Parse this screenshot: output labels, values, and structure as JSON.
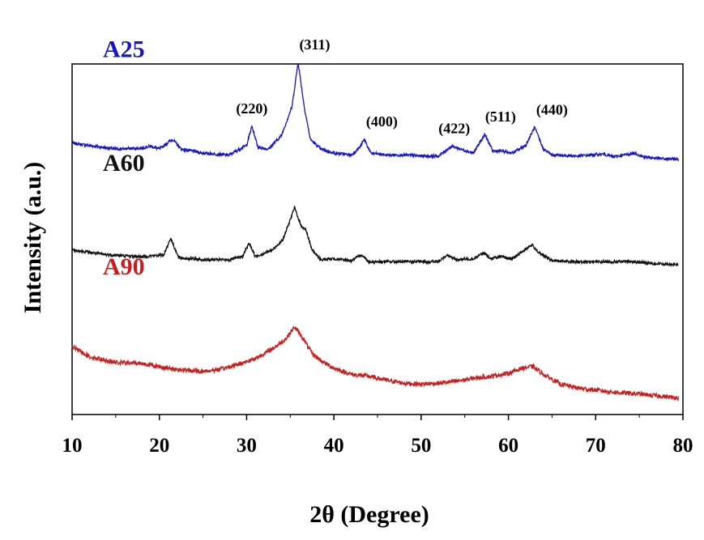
{
  "chart_data": {
    "type": "line",
    "xlabel": "2θ (Degree)",
    "ylabel": "Intensity (a.u.)",
    "xlim": [
      10,
      80
    ],
    "x_ticks": [
      "10",
      "20",
      "30",
      "40",
      "50",
      "60",
      "70",
      "80"
    ],
    "grid": false,
    "legend": "none",
    "series": [
      {
        "name": "A25",
        "color": "#1414c8",
        "offset": 2.1,
        "points": [
          [
            10,
            0.18
          ],
          [
            15,
            0.12
          ],
          [
            18,
            0.13
          ],
          [
            19,
            0.15
          ],
          [
            20,
            0.12
          ],
          [
            21.5,
            0.22
          ],
          [
            22.5,
            0.12
          ],
          [
            25,
            0.08
          ],
          [
            28,
            0.06
          ],
          [
            30,
            0.16
          ],
          [
            30.6,
            0.35
          ],
          [
            31.3,
            0.14
          ],
          [
            32.5,
            0.12
          ],
          [
            34,
            0.26
          ],
          [
            35.2,
            0.55
          ],
          [
            35.9,
            1.0
          ],
          [
            36.6,
            0.55
          ],
          [
            37.3,
            0.22
          ],
          [
            38.5,
            0.12
          ],
          [
            40,
            0.08
          ],
          [
            42,
            0.06
          ],
          [
            43.0,
            0.14
          ],
          [
            43.5,
            0.22
          ],
          [
            44.2,
            0.08
          ],
          [
            46,
            0.06
          ],
          [
            48,
            0.06
          ],
          [
            50,
            0.05
          ],
          [
            52,
            0.05
          ],
          [
            53.5,
            0.15
          ],
          [
            54.5,
            0.12
          ],
          [
            56,
            0.08
          ],
          [
            57.3,
            0.27
          ],
          [
            58.2,
            0.1
          ],
          [
            59.2,
            0.1
          ],
          [
            60.5,
            0.08
          ],
          [
            62.0,
            0.16
          ],
          [
            63.0,
            0.34
          ],
          [
            64,
            0.12
          ],
          [
            65,
            0.06
          ],
          [
            68,
            0.05
          ],
          [
            71,
            0.07
          ],
          [
            72,
            0.04
          ],
          [
            74.5,
            0.08
          ],
          [
            75.5,
            0.04
          ],
          [
            78,
            0.02
          ],
          [
            79.5,
            0.02
          ]
        ]
      },
      {
        "name": "A60",
        "color": "#111111",
        "offset": 1.05,
        "points": [
          [
            10,
            0.15
          ],
          [
            14,
            0.1
          ],
          [
            18,
            0.08
          ],
          [
            20.5,
            0.1
          ],
          [
            21.3,
            0.27
          ],
          [
            22.2,
            0.07
          ],
          [
            25,
            0.05
          ],
          [
            28,
            0.05
          ],
          [
            29.5,
            0.08
          ],
          [
            30.3,
            0.22
          ],
          [
            31,
            0.08
          ],
          [
            33,
            0.15
          ],
          [
            34.2,
            0.26
          ],
          [
            35.5,
            0.58
          ],
          [
            36.2,
            0.4
          ],
          [
            36.8,
            0.35
          ],
          [
            37.5,
            0.15
          ],
          [
            38.5,
            0.05
          ],
          [
            40,
            0.06
          ],
          [
            42,
            0.04
          ],
          [
            43.2,
            0.1
          ],
          [
            44,
            0.03
          ],
          [
            46,
            0.03
          ],
          [
            48,
            0.03
          ],
          [
            50,
            0.03
          ],
          [
            52,
            0.03
          ],
          [
            53,
            0.1
          ],
          [
            54,
            0.05
          ],
          [
            56,
            0.06
          ],
          [
            57.2,
            0.12
          ],
          [
            58,
            0.06
          ],
          [
            59,
            0.08
          ],
          [
            60.5,
            0.06
          ],
          [
            62.0,
            0.16
          ],
          [
            62.7,
            0.2
          ],
          [
            63.5,
            0.12
          ],
          [
            65,
            0.04
          ],
          [
            68,
            0.03
          ],
          [
            71,
            0.03
          ],
          [
            74,
            0.03
          ],
          [
            77,
            0.01
          ],
          [
            79.5,
            0.0
          ]
        ]
      },
      {
        "name": "A90",
        "color": "#c81e1e",
        "offset": 0.0,
        "points": [
          [
            10,
            0.22
          ],
          [
            12,
            0.12
          ],
          [
            15,
            0.06
          ],
          [
            18,
            0.05
          ],
          [
            21,
            0.0
          ],
          [
            23,
            -0.02
          ],
          [
            25,
            -0.03
          ],
          [
            27,
            -0.01
          ],
          [
            29,
            0.04
          ],
          [
            31,
            0.1
          ],
          [
            33,
            0.2
          ],
          [
            34.5,
            0.3
          ],
          [
            35.5,
            0.42
          ],
          [
            36.5,
            0.3
          ],
          [
            37.5,
            0.15
          ],
          [
            38.5,
            0.08
          ],
          [
            40,
            0.0
          ],
          [
            42,
            -0.06
          ],
          [
            44,
            -0.08
          ],
          [
            46,
            -0.12
          ],
          [
            48,
            -0.15
          ],
          [
            50,
            -0.16
          ],
          [
            52,
            -0.15
          ],
          [
            54,
            -0.13
          ],
          [
            56,
            -0.1
          ],
          [
            58,
            -0.08
          ],
          [
            60,
            -0.05
          ],
          [
            61.5,
            0.0
          ],
          [
            62.8,
            0.02
          ],
          [
            64,
            -0.06
          ],
          [
            66,
            -0.16
          ],
          [
            68,
            -0.2
          ],
          [
            70,
            -0.22
          ],
          [
            72,
            -0.24
          ],
          [
            75,
            -0.26
          ],
          [
            79.5,
            -0.3
          ]
        ]
      }
    ],
    "annotations": [
      {
        "text": "(220)",
        "x": 30.6,
        "series": "A25"
      },
      {
        "text": "(311)",
        "x": 37.8,
        "series": "A25"
      },
      {
        "text": "(400)",
        "x": 45.5,
        "series": "A25"
      },
      {
        "text": "(422)",
        "x": 53.8,
        "series": "A25"
      },
      {
        "text": "(511)",
        "x": 59.1,
        "series": "A25"
      },
      {
        "text": "(440)",
        "x": 65.0,
        "series": "A25"
      }
    ]
  }
}
